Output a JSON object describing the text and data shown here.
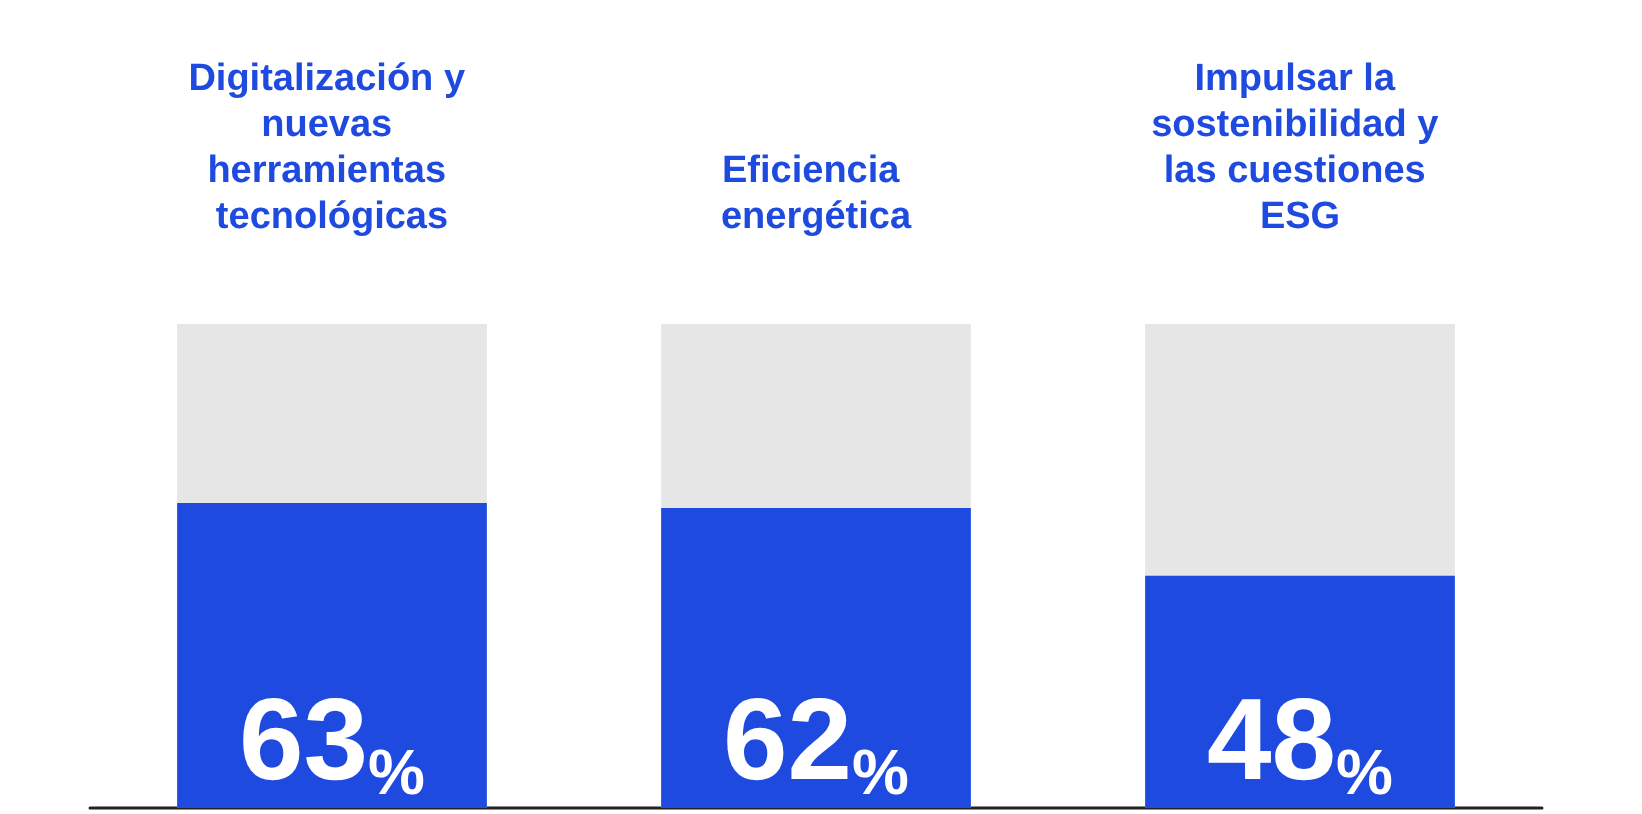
{
  "chart_data": {
    "type": "bar",
    "categories": [
      "Digitalización y nuevas herramientas tecnológicas",
      "Eficiencia energética",
      "Impulsar la sostenibilidad y las cuestiones ESG"
    ],
    "series": [
      {
        "color": "#1f4ae0",
        "values": [
          63,
          62,
          48
        ],
        "value_labels": [
          "63%",
          "62%",
          "48%"
        ]
      }
    ],
    "ylim": [
      0,
      100
    ],
    "tick_labels": "x"
  }
}
